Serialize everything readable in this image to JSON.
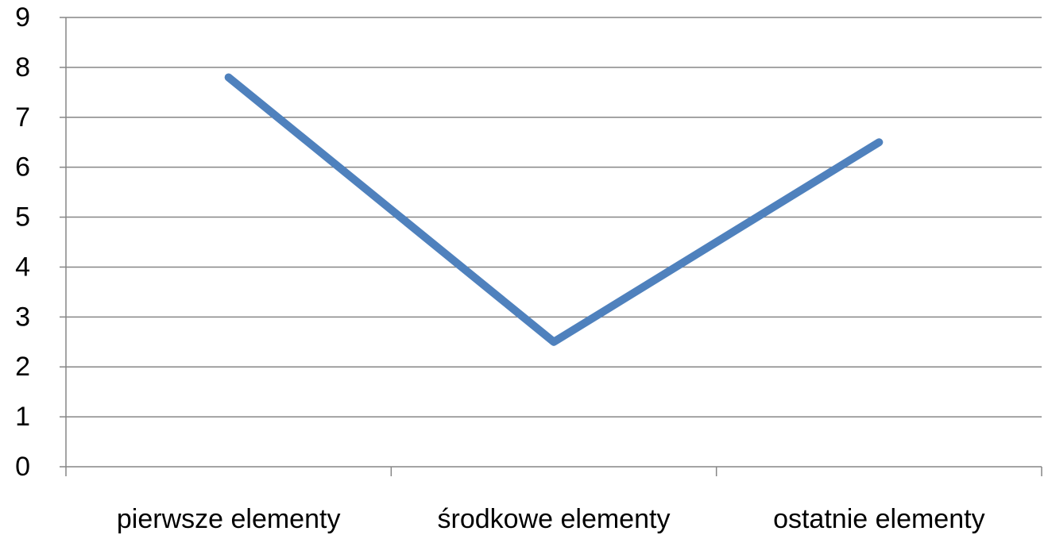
{
  "chart_data": {
    "type": "line",
    "categories": [
      "pierwsze elementy",
      "środkowe elementy",
      "ostatnie elementy"
    ],
    "values": [
      7.8,
      2.5,
      6.5
    ],
    "color": "#4f81bd",
    "ylim": [
      0,
      9
    ],
    "yticks": [
      0,
      1,
      2,
      3,
      4,
      5,
      6,
      7,
      8,
      9
    ],
    "grid": true
  }
}
